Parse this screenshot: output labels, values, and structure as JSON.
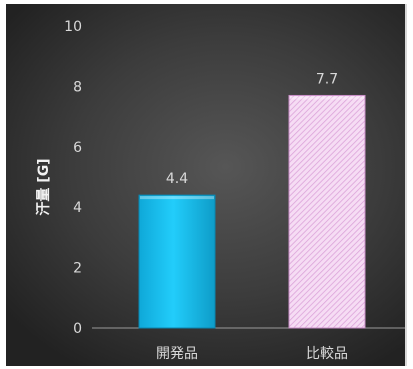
{
  "chart_data": {
    "type": "bar",
    "title": "",
    "xlabel": "",
    "ylabel": "汗量 [G]",
    "categories": [
      "開発品",
      "比較品"
    ],
    "values": [
      4.4,
      7.7
    ],
    "data_labels": [
      "4.4",
      "7.7"
    ],
    "ylim": [
      0,
      10
    ],
    "yticks": [
      0,
      2,
      4,
      6,
      8,
      10
    ],
    "grid": false,
    "legend": "none",
    "colors": {
      "bar_1": "#1ec6f5",
      "bar_2": "#f3d3f1",
      "bar_2_hatch": "#d89ad6",
      "background": "#3c3c3c",
      "text": "#d9d9d9",
      "axis_line": "#9a9a9a"
    }
  }
}
